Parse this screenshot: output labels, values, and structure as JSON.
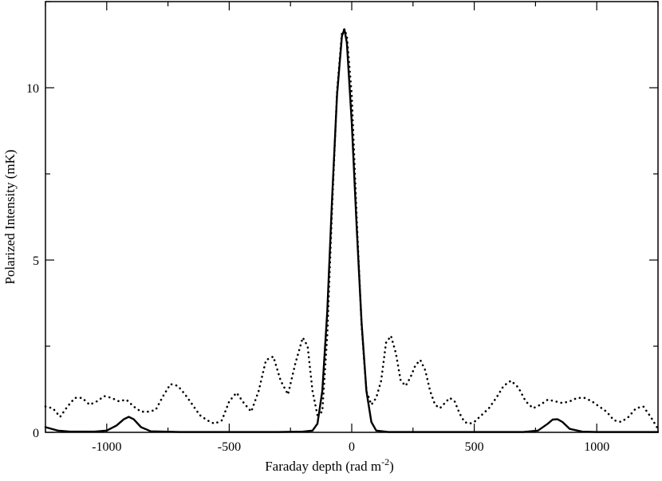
{
  "chart_data": {
    "type": "line",
    "xlabel": "Faraday depth  (rad m",
    "xlabel_sup": "-2",
    "xlabel_close": ")",
    "ylabel": "Polarized Intensity  (mK)",
    "xlim": [
      -1250,
      1250
    ],
    "ylim": [
      0,
      12.5
    ],
    "x_ticks": [
      -1000,
      -500,
      0,
      500,
      1000
    ],
    "x_tick_labels": [
      "-1000",
      "-500",
      "0",
      "500",
      "1000"
    ],
    "y_ticks": [
      0,
      5,
      10
    ],
    "y_tick_labels": [
      "0",
      "5",
      "10"
    ],
    "grid": false,
    "legend": false,
    "series": [
      {
        "style": "solid",
        "color": "#000000",
        "x": [
          -1250,
          -1200,
          -1150,
          -1100,
          -1050,
          -1000,
          -960,
          -930,
          -910,
          -890,
          -860,
          -820,
          -700,
          -500,
          -300,
          -200,
          -160,
          -140,
          -120,
          -100,
          -80,
          -60,
          -40,
          -30,
          -20,
          0,
          20,
          40,
          60,
          80,
          100,
          150,
          200,
          300,
          500,
          700,
          760,
          800,
          820,
          840,
          860,
          890,
          940,
          1000,
          1100,
          1250
        ],
        "y": [
          0.15,
          0.05,
          0.02,
          0.02,
          0.02,
          0.05,
          0.2,
          0.38,
          0.45,
          0.38,
          0.15,
          0.03,
          0.01,
          0.01,
          0.01,
          0.02,
          0.05,
          0.25,
          1.2,
          3.5,
          6.8,
          9.8,
          11.5,
          11.7,
          11.3,
          9.0,
          6.0,
          3.2,
          1.2,
          0.3,
          0.05,
          0.01,
          0.01,
          0.01,
          0.01,
          0.01,
          0.05,
          0.25,
          0.37,
          0.38,
          0.3,
          0.1,
          0.02,
          0.01,
          0.01,
          0.01
        ]
      },
      {
        "style": "dotted",
        "color": "#000000",
        "x": [
          -1250,
          -1220,
          -1190,
          -1160,
          -1130,
          -1100,
          -1070,
          -1040,
          -1010,
          -980,
          -950,
          -920,
          -890,
          -860,
          -830,
          -800,
          -770,
          -740,
          -710,
          -680,
          -650,
          -620,
          -590,
          -560,
          -530,
          -500,
          -470,
          -440,
          -410,
          -380,
          -350,
          -320,
          -290,
          -260,
          -230,
          -200,
          -180,
          -160,
          -140,
          -120,
          -100,
          -80,
          -60,
          -40,
          -30,
          -20,
          0,
          20,
          40,
          60,
          80,
          100,
          120,
          140,
          160,
          180,
          200,
          220,
          240,
          260,
          280,
          300,
          320,
          340,
          360,
          380,
          400,
          420,
          440,
          460,
          480,
          500,
          530,
          560,
          590,
          620,
          650,
          680,
          710,
          740,
          770,
          800,
          830,
          860,
          890,
          920,
          950,
          980,
          1010,
          1040,
          1070,
          1100,
          1130,
          1160,
          1190,
          1220,
          1250
        ],
        "y": [
          0.75,
          0.7,
          0.45,
          0.75,
          1.0,
          1.0,
          0.8,
          0.9,
          1.05,
          1.0,
          0.9,
          0.95,
          0.75,
          0.6,
          0.6,
          0.65,
          1.05,
          1.4,
          1.35,
          1.1,
          0.8,
          0.5,
          0.35,
          0.25,
          0.35,
          0.9,
          1.15,
          0.85,
          0.6,
          1.2,
          2.1,
          2.2,
          1.5,
          1.1,
          2.0,
          2.75,
          2.5,
          1.2,
          0.5,
          0.6,
          2.8,
          6.5,
          9.9,
          11.6,
          11.7,
          11.5,
          9.8,
          6.3,
          3.1,
          1.2,
          0.8,
          1.0,
          1.5,
          2.6,
          2.8,
          2.3,
          1.5,
          1.35,
          1.6,
          1.95,
          2.1,
          1.8,
          1.2,
          0.8,
          0.7,
          0.85,
          1.0,
          0.9,
          0.55,
          0.3,
          0.25,
          0.3,
          0.5,
          0.7,
          1.0,
          1.35,
          1.5,
          1.3,
          0.9,
          0.7,
          0.8,
          0.95,
          0.9,
          0.85,
          0.9,
          1.0,
          1.0,
          0.9,
          0.75,
          0.6,
          0.35,
          0.3,
          0.45,
          0.7,
          0.75,
          0.45,
          0.1
        ]
      }
    ]
  }
}
